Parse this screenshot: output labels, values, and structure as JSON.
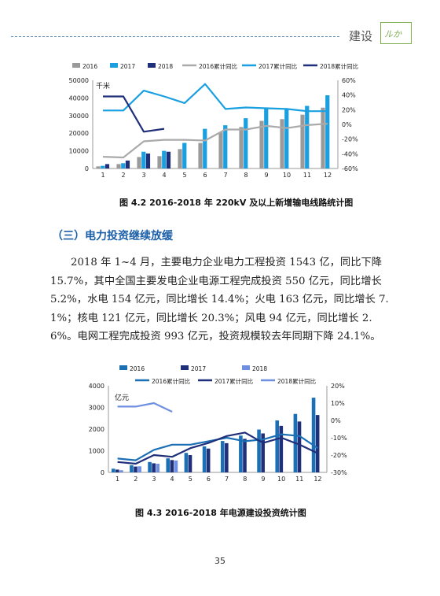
{
  "header": {
    "title": "建设",
    "logo_text": "ルか"
  },
  "figure1": {
    "caption": "图 4.2   2016-2018 年 220kV 及以上新增输电线路统计图",
    "chart_data": {
      "type": "bar",
      "unit_label": "千米",
      "categories": [
        "1",
        "2",
        "3",
        "4",
        "5",
        "6",
        "7",
        "8",
        "9",
        "10",
        "11",
        "12"
      ],
      "ylim": [
        0,
        50000
      ],
      "y_ticks": [
        "0",
        "10000",
        "20000",
        "30000",
        "40000",
        "50000"
      ],
      "y2lim": [
        -60,
        60
      ],
      "y2_ticks": [
        "-60%",
        "-40%",
        "-20%",
        "0%",
        "20%",
        "40%",
        "60%"
      ],
      "legend": [
        "2016",
        "2017",
        "2018",
        "2016累计同比",
        "2017累计同比",
        "2018累计同比"
      ],
      "colors": {
        "2016": "#9a9a9a",
        "2017": "#1aa0e0",
        "2018": "#1f2f7a"
      },
      "bars": [
        {
          "name": "2016",
          "values": [
            1200,
            2500,
            6500,
            7000,
            11000,
            14500,
            20500,
            23500,
            27000,
            28000,
            30500,
            34500
          ]
        },
        {
          "name": "2017",
          "values": [
            1500,
            3000,
            9500,
            10000,
            14500,
            22500,
            24500,
            28500,
            34500,
            34000,
            35500,
            41500
          ]
        },
        {
          "name": "2018",
          "values": [
            2500,
            4500,
            8500,
            9500
          ]
        }
      ],
      "lines": [
        {
          "name": "2016累计同比",
          "values": [
            -44,
            -45,
            -23,
            -21,
            -21,
            -22,
            -7,
            -7,
            -2,
            -5,
            -1,
            1
          ]
        },
        {
          "name": "2017累计同比",
          "values": [
            19,
            19,
            46,
            38,
            29,
            55,
            21,
            23,
            22,
            21,
            18,
            18
          ]
        },
        {
          "name": "2018累计同比",
          "values": [
            38,
            38,
            -10,
            -6
          ]
        }
      ]
    }
  },
  "section": {
    "heading": "（三）电力投资继续放缓"
  },
  "paragraph": "2018 年 1~4 月，主要电力企业电力工程投资 1543 亿，同比下降 15.7%，其中全国主要发电企业电源工程完成投资 550 亿元，同比增长 5.2%，水电 154 亿元，同比增长 14.4%；火电 163 亿元，同比增长 7.1%；核电 121 亿元，同比增长 20.3%；风电 94 亿元，同比增长 2.6%。电网工程完成投资 993 亿元，投资规模较去年同期下降 24.1%。",
  "figure2": {
    "caption": "图 4.3    2016-2018 年电源建设投资统计图",
    "chart_data": {
      "type": "bar",
      "unit_label": "亿元",
      "categories": [
        "1",
        "2",
        "3",
        "4",
        "5",
        "6",
        "7",
        "8",
        "9",
        "10",
        "11",
        "12"
      ],
      "ylim": [
        0,
        4000
      ],
      "y_ticks": [
        "0",
        "1000",
        "2000",
        "3000",
        "4000"
      ],
      "y2lim": [
        -30,
        20
      ],
      "y2_ticks": [
        "-30%",
        "-20%",
        "-10%",
        "0%",
        "10%",
        "20%"
      ],
      "legend": [
        "2016",
        "2017",
        "2018",
        "2016累计同比",
        "2017累计同比",
        "2018累计同比"
      ],
      "colors": {
        "2016": "#1b6fb5",
        "2017": "#1f2f7a",
        "2018": "#6f8fe0"
      },
      "bars": [
        {
          "name": "2016",
          "values": [
            170,
            330,
            480,
            650,
            900,
            1200,
            1450,
            1700,
            1980,
            2400,
            2700,
            3450
          ]
        },
        {
          "name": "2017",
          "values": [
            130,
            270,
            420,
            570,
            800,
            1100,
            1350,
            1550,
            1800,
            2150,
            2350,
            2650
          ]
        },
        {
          "name": "2018",
          "values": [
            100,
            280,
            400,
            550
          ]
        }
      ],
      "lines": [
        {
          "name": "2016累计同比",
          "values": [
            -22,
            -23,
            -17,
            -14,
            -14,
            -12,
            -10,
            -12,
            -11,
            -8,
            -9,
            -16
          ]
        },
        {
          "name": "2017累计同比",
          "values": [
            -24,
            -25,
            -20,
            -21,
            -16,
            -13,
            -9,
            -7,
            -13,
            -10,
            -14,
            -19
          ]
        },
        {
          "name": "2018累计同比",
          "values": [
            8,
            8,
            10,
            5
          ]
        }
      ]
    }
  },
  "page": {
    "number": "35"
  }
}
